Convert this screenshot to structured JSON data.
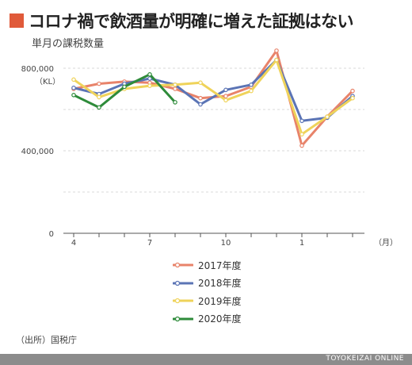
{
  "title": "コロナ禍で飲酒量が明確に増えた証拠はない",
  "subtitle": "単月の課税数量",
  "source": "（出所）国税庁",
  "footer": "TOYOKEIZAI ONLINE",
  "colors": {
    "accent": "#e05a3a",
    "s2017": "#e8836a",
    "s2018": "#5b74b5",
    "s2019": "#efd35a",
    "s2020": "#2e8b3a",
    "grid": "#d9d9d9"
  },
  "chart_data": {
    "type": "line",
    "title": "コロナ禍で飲酒量が明確に増えた証拠はない",
    "subtitle": "単月の課税数量",
    "xlabel": "",
    "ylabel": "（KL）",
    "x_unit": "（月）",
    "months": [
      4,
      5,
      6,
      7,
      8,
      9,
      10,
      11,
      12,
      1,
      2,
      3
    ],
    "x_tick_labels": [
      "4",
      "7",
      "10",
      "1"
    ],
    "x_tick_months": [
      4,
      7,
      10,
      1
    ],
    "y_ticks": [
      0,
      400000,
      800000
    ],
    "y_tick_labels": [
      "0",
      "400,000",
      "800,000"
    ],
    "ylim": [
      0,
      900000
    ],
    "grid": true,
    "legend_position": "bottom",
    "series": [
      {
        "name": "2017年度",
        "color": "#e8836a",
        "values": [
          700000,
          725000,
          735000,
          730000,
          700000,
          655000,
          665000,
          710000,
          885000,
          425000,
          565000,
          690000
        ]
      },
      {
        "name": "2018年度",
        "color": "#5b74b5",
        "values": [
          705000,
          675000,
          725000,
          750000,
          720000,
          625000,
          695000,
          720000,
          840000,
          545000,
          560000,
          665000
        ]
      },
      {
        "name": "2019年度",
        "color": "#efd35a",
        "values": [
          745000,
          660000,
          700000,
          715000,
          720000,
          730000,
          645000,
          690000,
          840000,
          480000,
          565000,
          655000
        ]
      },
      {
        "name": "2020年度",
        "color": "#2e8b3a",
        "values": [
          670000,
          610000,
          710000,
          770000,
          635000,
          null,
          null,
          null,
          null,
          null,
          null,
          null
        ]
      }
    ]
  }
}
